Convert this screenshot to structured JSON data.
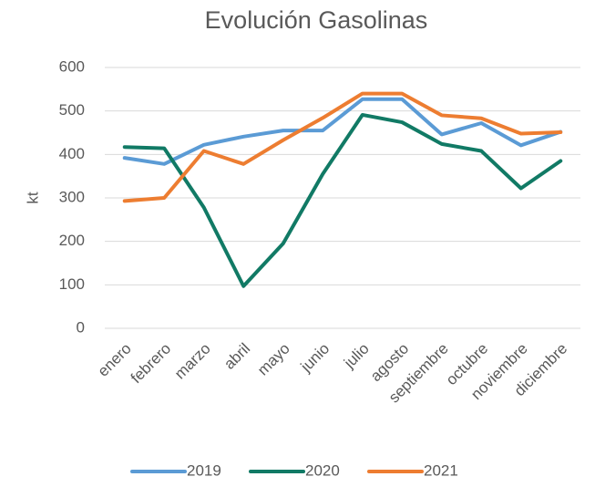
{
  "chart_data": {
    "type": "line",
    "title": "Evolución Gasolinas",
    "y_label": "kt",
    "categories": [
      "enero",
      "febrero",
      "marzo",
      "abril",
      "mayo",
      "junio",
      "julio",
      "agosto",
      "septiembre",
      "octubre",
      "noviembre",
      "diciembre"
    ],
    "series": [
      {
        "name": "2019",
        "color": "#5b9bd5",
        "values": [
          392,
          378,
          422,
          441,
          455,
          455,
          527,
          527,
          446,
          472,
          421,
          452
        ]
      },
      {
        "name": "2020",
        "color": "#117a65",
        "values": [
          417,
          414,
          278,
          97,
          195,
          355,
          491,
          474,
          424,
          408,
          322,
          385
        ]
      },
      {
        "name": "2021",
        "color": "#ed7d31",
        "values": [
          293,
          300,
          408,
          378,
          433,
          484,
          540,
          540,
          490,
          483,
          448,
          451
        ]
      }
    ],
    "ylim": [
      0,
      600
    ],
    "yticks": [
      0,
      100,
      200,
      300,
      400,
      500,
      600
    ],
    "grid": true,
    "legend": "bottom"
  }
}
